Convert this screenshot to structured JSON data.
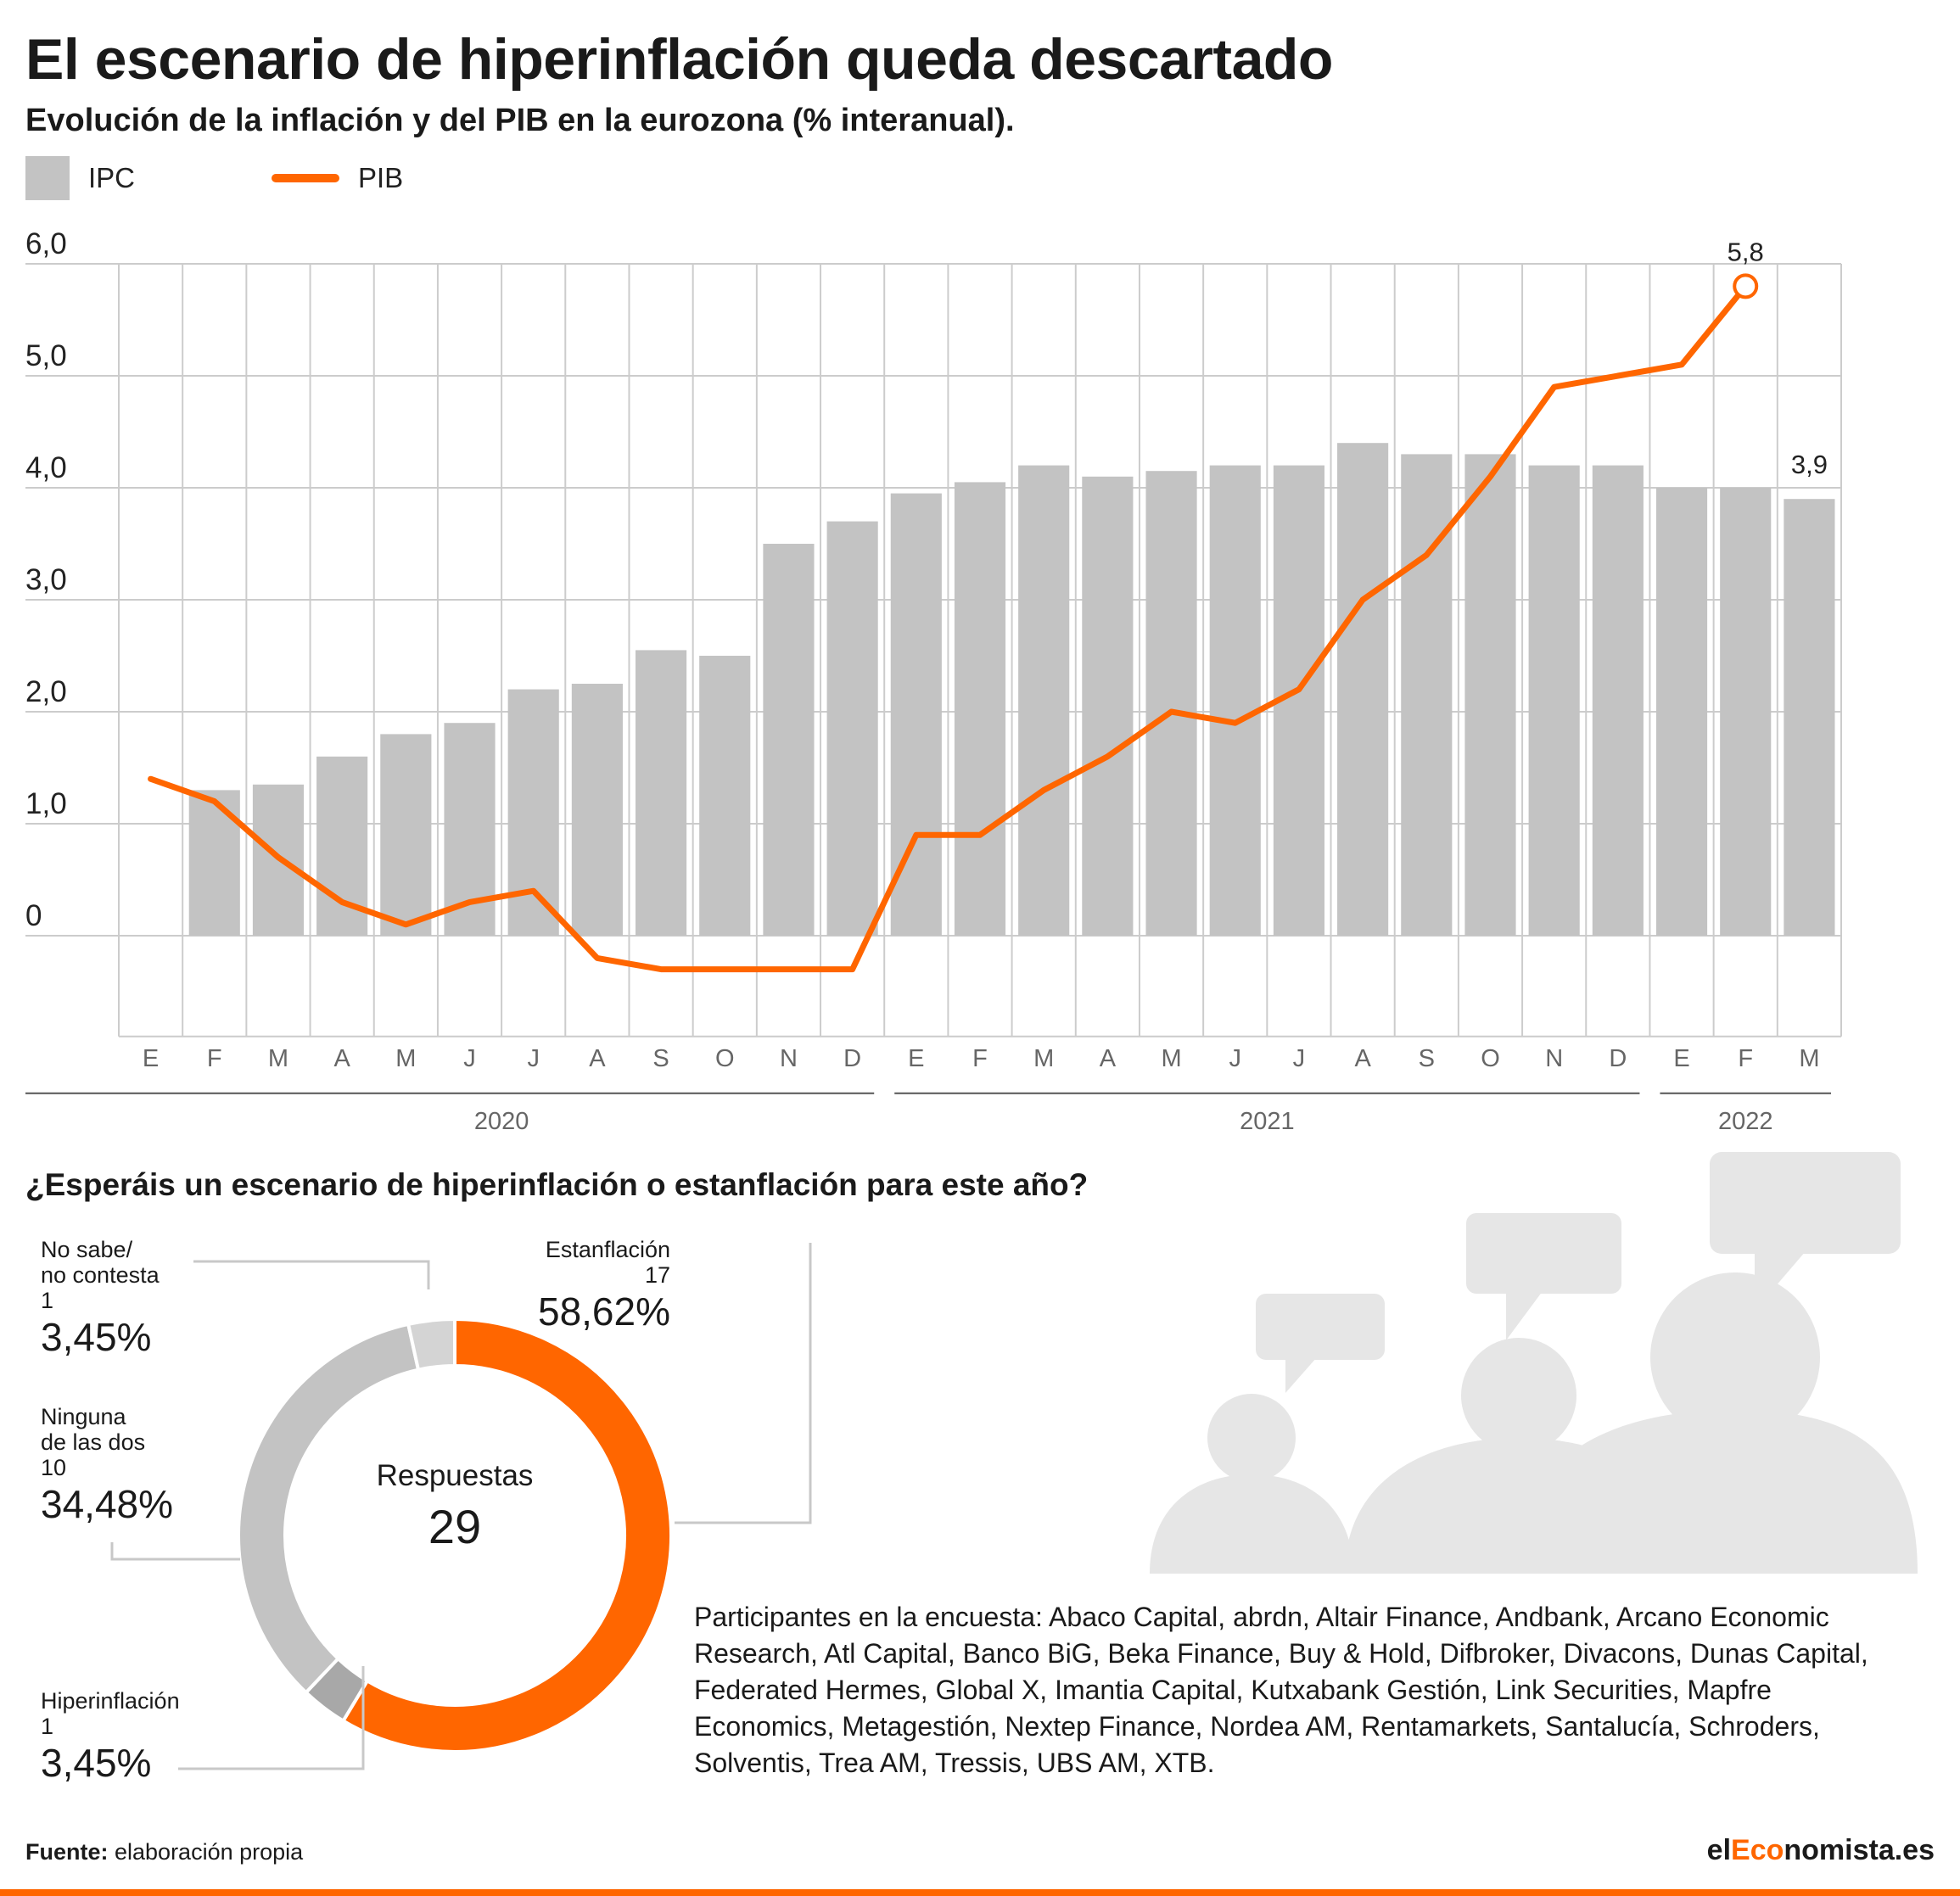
{
  "header": {
    "title": "El escenario de hiperinflación queda descartado",
    "subtitle": "Evolución de la inflación y del PIB en la eurozona (% interanual)."
  },
  "legend": {
    "ipc": "IPC",
    "pib": "PIB"
  },
  "colors": {
    "ipc": "#c3c3c3",
    "pib": "#ff6600",
    "ns_nc": "#d4d4d4",
    "hiper": "#a8a8a8",
    "ninguna": "#c3c3c3",
    "grid": "#cccccc"
  },
  "chart_data": [
    {
      "type": "bar",
      "categories": [
        "E",
        "F",
        "M",
        "A",
        "M",
        "J",
        "J",
        "A",
        "S",
        "O",
        "N",
        "D",
        "E",
        "F",
        "M",
        "A",
        "M",
        "J",
        "J",
        "A",
        "S",
        "O",
        "N",
        "D",
        "E",
        "F",
        "M"
      ],
      "years": [
        {
          "label": "2020",
          "months": 12
        },
        {
          "label": "2021",
          "months": 12
        },
        {
          "label": "2022",
          "months": 3
        }
      ],
      "series": [
        {
          "name": "IPC",
          "type": "bar",
          "values": [
            null,
            1.3,
            1.35,
            1.6,
            1.8,
            1.9,
            2.2,
            2.25,
            2.55,
            2.5,
            3.5,
            3.7,
            3.95,
            4.05,
            4.2,
            4.1,
            4.15,
            4.2,
            4.2,
            4.4,
            4.3,
            4.3,
            4.2,
            4.2,
            4.0,
            4.0,
            3.9
          ]
        },
        {
          "name": "PIB",
          "type": "line",
          "values": [
            1.4,
            1.2,
            0.7,
            0.3,
            0.1,
            0.3,
            0.4,
            -0.2,
            -0.3,
            -0.3,
            -0.3,
            -0.3,
            0.9,
            0.9,
            1.3,
            1.6,
            2.0,
            1.9,
            2.2,
            3.0,
            3.4,
            4.1,
            4.9,
            5.0,
            5.1,
            5.8,
            null
          ]
        }
      ],
      "yticks": [
        "6,0",
        "5,0",
        "4,0",
        "3,0",
        "2,0",
        "1,0",
        "0"
      ],
      "ylim": [
        -0.9,
        6.0
      ],
      "annotations": [
        {
          "series": "PIB",
          "index": 25,
          "label": "5,8"
        },
        {
          "series": "IPC",
          "index": 26,
          "label": "3,9"
        }
      ],
      "grid": true
    },
    {
      "type": "pie",
      "title": "¿Esperáis un escenario de hiperinflación o estanflación para este año?",
      "center_label": "Respuestas",
      "total": "29",
      "slices": [
        {
          "key": "estanflacion",
          "name": "Estanflación",
          "count": "17",
          "pct": "58,62%",
          "value": 17
        },
        {
          "key": "hiper",
          "name": "Hiperinflación",
          "count": "1",
          "pct": "3,45%",
          "value": 1
        },
        {
          "key": "ninguna",
          "name_lines": [
            "Ninguna",
            "de las dos"
          ],
          "count": "10",
          "pct": "34,48%",
          "value": 10
        },
        {
          "key": "ns_nc",
          "name_lines": [
            "No sabe/",
            "no contesta"
          ],
          "count": "1",
          "pct": "3,45%",
          "value": 1
        }
      ]
    }
  ],
  "participants": "Participantes en la encuesta: Abaco Capital, abrdn, Altair Finance, Andbank, Arcano Economic Research, Atl Capital, Banco BiG, Beka Finance, Buy  & Hold, Difbroker, Divacons, Dunas Capital, Federated Hermes, Global X, Imantia Capital, Kutxabank Gestión, Link Securities, Mapfre Economics, Metagestión, Nextep Finance, Nordea AM, Rentamarkets, Santalucía, Schroders, Solventis, Trea AM, Tressis, UBS AM, XTB.",
  "illustration": {
    "icon": "people-speech-bubbles-icon"
  },
  "footer": {
    "source_label": "Fuente:",
    "source_text": " elaboración propia",
    "brand_prefix": "el",
    "brand_accent": "Eco",
    "brand_suffix": "nomista.es"
  }
}
